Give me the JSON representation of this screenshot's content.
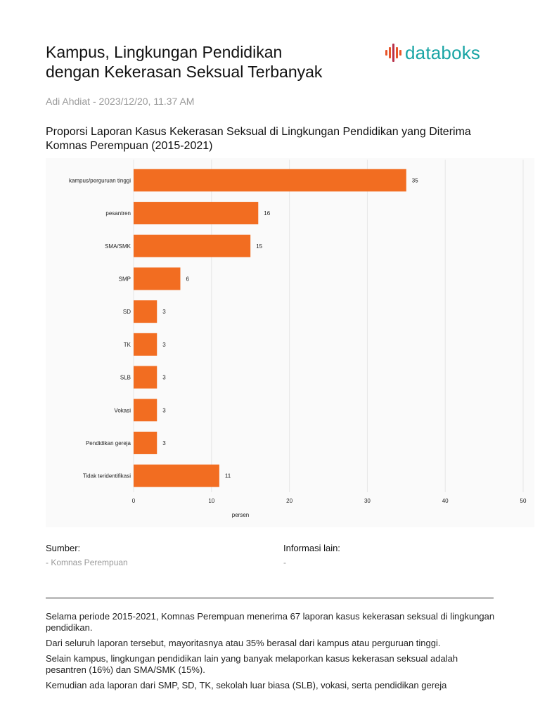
{
  "header": {
    "title_line1": "Kampus, Lingkungan Pendidikan",
    "title_line2": "dengan Kekerasan Seksual Terbanyak",
    "brand": "databoks",
    "byline": "Adi Ahdiat - 2023/12/20, 11.37 AM"
  },
  "colors": {
    "bar": "#f26d21",
    "brand_teal": "#1aa5a5",
    "brand_orange": "#e8562a"
  },
  "chart_data": {
    "type": "bar",
    "orientation": "horizontal",
    "title": "Proporsi Laporan Kasus Kekerasan Seksual di Lingkungan Pendidikan yang Diterima Komnas Perempuan (2015-2021)",
    "categories": [
      "kampus/perguruan tinggi",
      "pesantren",
      "SMA/SMK",
      "SMP",
      "SD",
      "TK",
      "SLB",
      "Vokasi",
      "Pendidikan gereja",
      "Tidak teridentifikasi"
    ],
    "values": [
      35,
      16,
      15,
      6,
      3,
      3,
      3,
      3,
      3,
      11
    ],
    "xlabel": "persen",
    "ylabel": "",
    "xlim": [
      0,
      50
    ],
    "xticks": [
      0,
      10,
      20,
      30,
      40,
      50
    ],
    "grid": true
  },
  "footer": {
    "source_heading": "Sumber:",
    "source_value": "- Komnas Perempuan",
    "info_heading": "Informasi lain:",
    "info_value": "-"
  },
  "article": {
    "p1": "Selama periode 2015-2021, Komnas Perempuan menerima 67 laporan kasus kekerasan seksual di lingkungan pendidikan.",
    "p2": "Dari seluruh laporan tersebut, mayoritasnya atau 35% berasal dari kampus atau perguruan tinggi.",
    "p3": "Selain kampus, lingkungan pendidikan lain yang banyak melaporkan kasus kekerasan seksual adalah pesantren (16%) dan SMA/SMK (15%).",
    "p4": "Kemudian ada laporan dari SMP, SD, TK, sekolah luar biasa (SLB), vokasi, serta pendidikan gereja"
  }
}
